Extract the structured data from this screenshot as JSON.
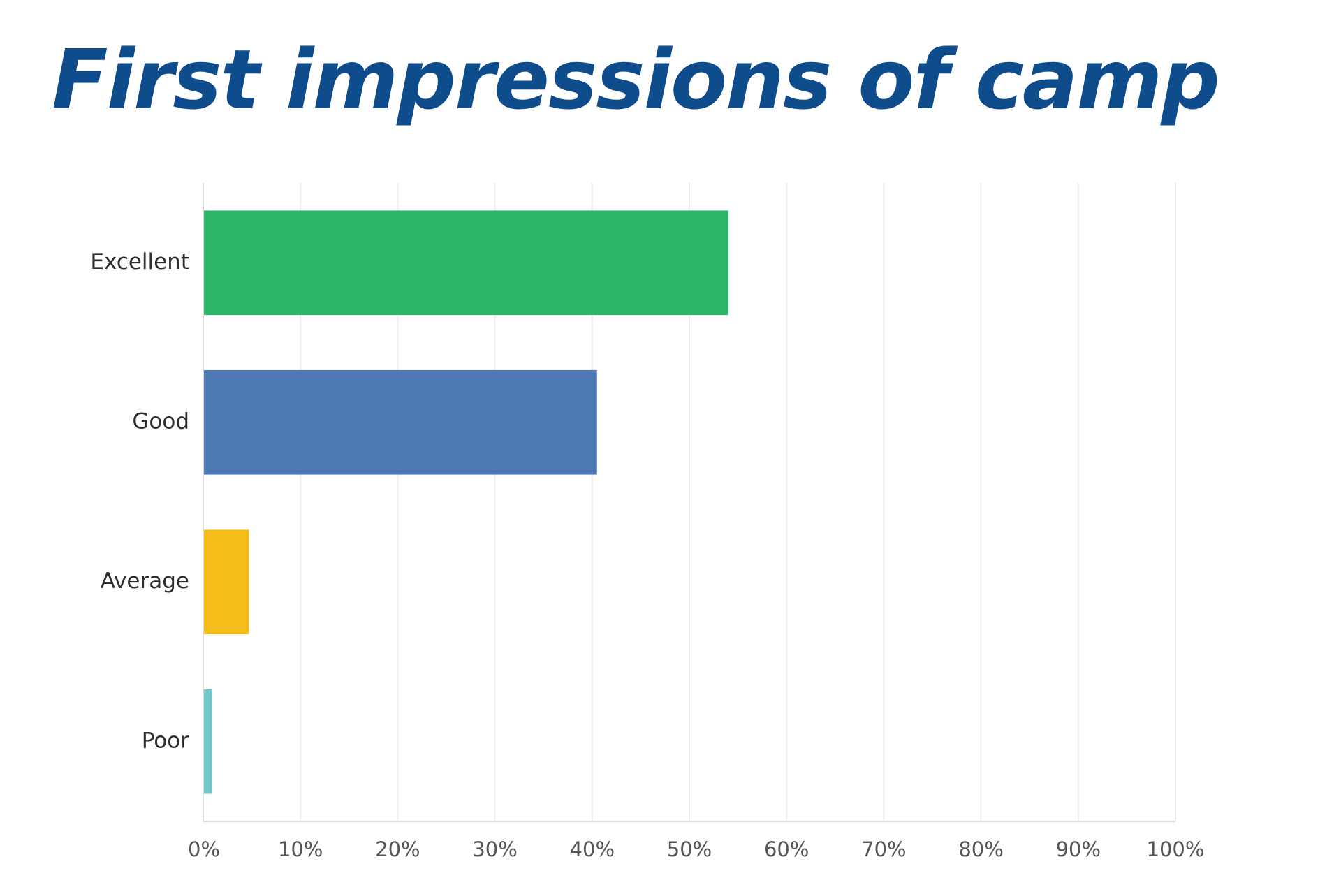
{
  "chart_data": {
    "type": "bar",
    "orientation": "horizontal",
    "title": "First impressions of camp",
    "categories": [
      "Excellent",
      "Good",
      "Average",
      "Poor"
    ],
    "values": [
      54,
      40.5,
      4.7,
      0.9
    ],
    "colors": [
      "#2db56a",
      "#4e79b4",
      "#f4bd17",
      "#73c8c8"
    ],
    "xlim": [
      0,
      100
    ],
    "x_ticks": [
      "0%",
      "10%",
      "20%",
      "30%",
      "40%",
      "50%",
      "60%",
      "70%",
      "80%",
      "90%",
      "100%"
    ],
    "grid": true,
    "legend": "none",
    "xlabel": "",
    "ylabel": ""
  }
}
